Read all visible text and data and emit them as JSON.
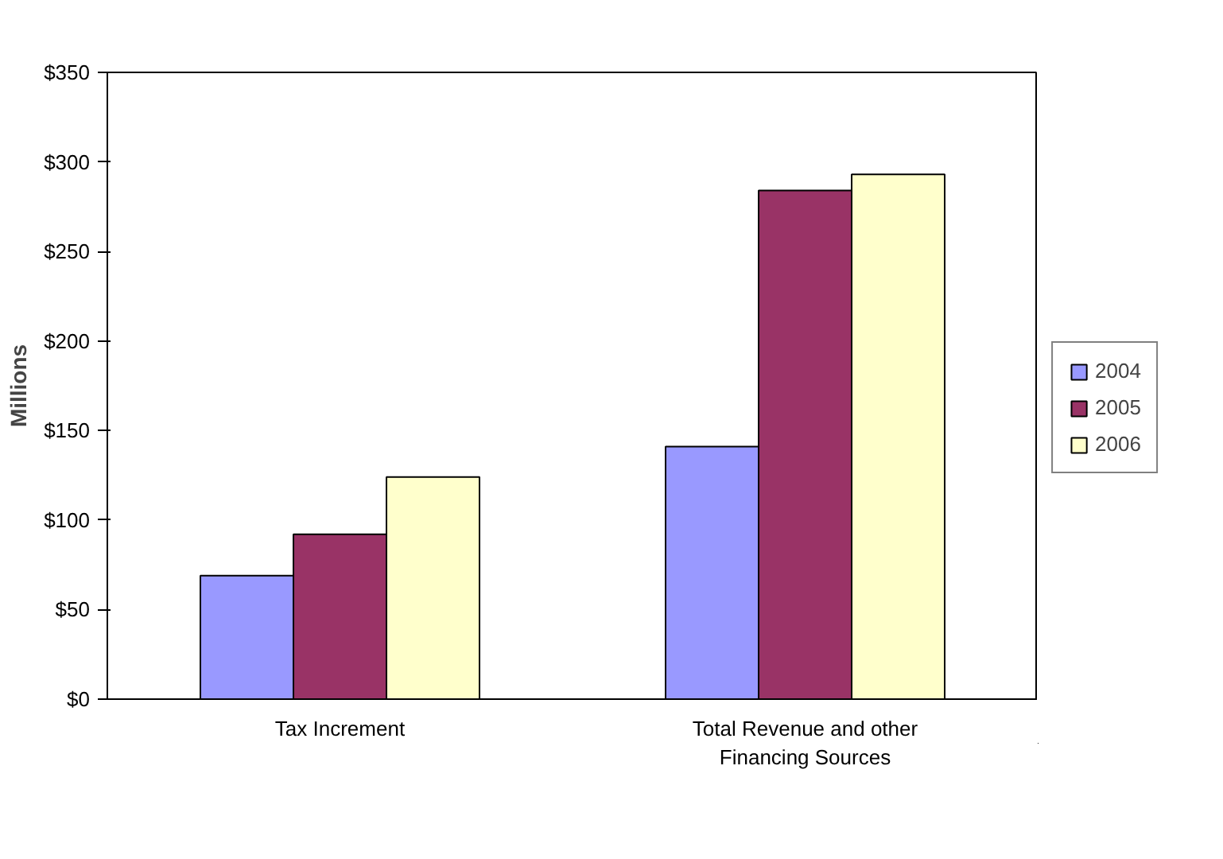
{
  "chart_data": {
    "type": "bar",
    "ylabel": "Millions",
    "categories": [
      "Tax Increment",
      "Total Revenue and other Financing Sources"
    ],
    "series": [
      {
        "name": "2004",
        "color": "#9999ff",
        "values": [
          69,
          141
        ]
      },
      {
        "name": "2005",
        "color": "#993366",
        "values": [
          92,
          284
        ]
      },
      {
        "name": "2006",
        "color": "#ffffcc",
        "values": [
          124,
          293
        ]
      }
    ],
    "ylim": [
      0,
      350
    ],
    "yticks": [
      {
        "value": 0,
        "label": "$0"
      },
      {
        "value": 50,
        "label": "$50"
      },
      {
        "value": 100,
        "label": "$100"
      },
      {
        "value": 150,
        "label": "$150"
      },
      {
        "value": 200,
        "label": "$200"
      },
      {
        "value": 250,
        "label": "$250"
      },
      {
        "value": 300,
        "label": "$300"
      },
      {
        "value": 350,
        "label": "$350"
      }
    ],
    "grid": false,
    "legend": "right"
  }
}
